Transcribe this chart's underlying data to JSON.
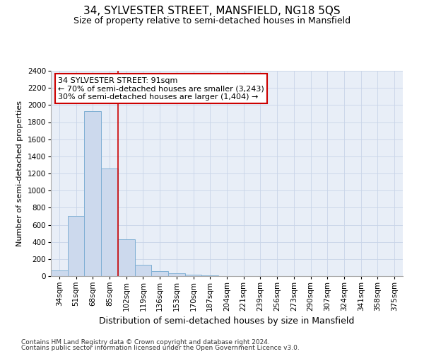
{
  "title": "34, SYLVESTER STREET, MANSFIELD, NG18 5QS",
  "subtitle": "Size of property relative to semi-detached houses in Mansfield",
  "xlabel": "Distribution of semi-detached houses by size in Mansfield",
  "ylabel": "Number of semi-detached properties",
  "categories": [
    "34sqm",
    "51sqm",
    "68sqm",
    "85sqm",
    "102sqm",
    "119sqm",
    "136sqm",
    "153sqm",
    "170sqm",
    "187sqm",
    "204sqm",
    "221sqm",
    "239sqm",
    "256sqm",
    "273sqm",
    "290sqm",
    "307sqm",
    "324sqm",
    "341sqm",
    "358sqm",
    "375sqm"
  ],
  "values": [
    65,
    700,
    1930,
    1260,
    430,
    130,
    60,
    35,
    20,
    5,
    0,
    0,
    0,
    0,
    0,
    0,
    0,
    0,
    0,
    0,
    0
  ],
  "bar_color": "#ccd9ed",
  "bar_edge_color": "#7fafd4",
  "vline_x_index": 3.5,
  "vline_color": "#cc0000",
  "annotation_text": "34 SYLVESTER STREET: 91sqm\n← 70% of semi-detached houses are smaller (3,243)\n30% of semi-detached houses are larger (1,404) →",
  "annotation_box_color": "#ffffff",
  "annotation_box_edge": "#cc0000",
  "ylim": [
    0,
    2400
  ],
  "yticks": [
    0,
    200,
    400,
    600,
    800,
    1000,
    1200,
    1400,
    1600,
    1800,
    2000,
    2200,
    2400
  ],
  "footer_line1": "Contains HM Land Registry data © Crown copyright and database right 2024.",
  "footer_line2": "Contains public sector information licensed under the Open Government Licence v3.0.",
  "background_color": "#ffffff",
  "plot_bg_color": "#e8eef7",
  "grid_color": "#c8d4e8",
  "title_fontsize": 11,
  "subtitle_fontsize": 9,
  "xlabel_fontsize": 9,
  "ylabel_fontsize": 8,
  "tick_fontsize": 7.5,
  "footer_fontsize": 6.5,
  "annotation_fontsize": 8
}
